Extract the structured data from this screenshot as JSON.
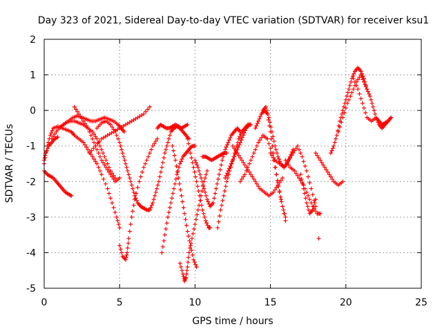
{
  "chart_data": {
    "type": "scatter",
    "title": "Day 323 of 2021, Sidereal Day-to-day VTEC variation (SDTVAR) for receiver ksu1",
    "xlabel": "GPS time / hours",
    "ylabel": "SDTVAR / TECUs",
    "xlim": [
      0,
      25
    ],
    "ylim": [
      -5,
      2
    ],
    "x_ticks": [
      "0",
      "5",
      "10",
      "15",
      "20",
      "25"
    ],
    "y_ticks": [
      "2",
      "1",
      "0",
      "-1",
      "-2",
      "-3",
      "-4",
      "-5"
    ],
    "grid": true,
    "marker": "plus",
    "series_color": "#ff0000",
    "series": [
      {
        "x": [
          0.0,
          0.2,
          0.4,
          0.6,
          0.9,
          1.2,
          1.5,
          1.8,
          2.0,
          2.3,
          2.6,
          2.9,
          3.2,
          3.5,
          3.8,
          4.2,
          4.5,
          4.8,
          5.0
        ],
        "y": [
          -1.5,
          -1.0,
          -0.7,
          -0.5,
          -0.45,
          -0.5,
          -0.55,
          -0.6,
          -0.7,
          -0.8,
          -0.9,
          -1.1,
          -1.3,
          -1.5,
          -1.8,
          -2.2,
          -2.6,
          -3.0,
          -3.3
        ]
      },
      {
        "x": [
          0.0,
          0.1,
          0.3,
          0.5,
          0.7,
          0.9
        ],
        "y": [
          -1.4,
          -1.2,
          -1.0,
          -0.9,
          -0.8,
          -0.75
        ]
      },
      {
        "x": [
          0.0,
          0.2,
          0.4,
          0.6,
          0.8,
          1.0,
          1.2,
          1.4,
          1.6,
          1.8
        ],
        "y": [
          -1.7,
          -1.8,
          -1.85,
          -1.9,
          -2.0,
          -2.1,
          -2.2,
          -2.3,
          -2.35,
          -2.4
        ]
      },
      {
        "x": [
          0.5,
          0.8,
          1.1,
          1.4,
          1.7,
          2.0,
          2.3,
          2.6,
          2.9,
          3.2,
          3.5,
          3.8,
          4.1,
          4.4,
          4.7
        ],
        "y": [
          -0.8,
          -0.6,
          -0.45,
          -0.35,
          -0.3,
          -0.3,
          -0.35,
          -0.4,
          -0.5,
          -0.6,
          -0.8,
          -1.1,
          -1.4,
          -1.7,
          -1.9
        ]
      },
      {
        "x": [
          1.0,
          1.3,
          1.6,
          1.9,
          2.2,
          2.5,
          2.8,
          3.1,
          3.4,
          3.7,
          4.0,
          4.3,
          4.6,
          4.9,
          5.1,
          5.3
        ],
        "y": [
          -0.5,
          -0.4,
          -0.3,
          -0.2,
          -0.15,
          -0.2,
          -0.25,
          -0.3,
          -0.3,
          -0.25,
          -0.2,
          -0.25,
          -0.3,
          -0.4,
          -0.5,
          -0.6
        ]
      },
      {
        "x": [
          2.0,
          2.3,
          2.6,
          2.9,
          3.2,
          3.5,
          3.8,
          4.1,
          4.4,
          4.7,
          5.0
        ],
        "y": [
          0.1,
          -0.1,
          -0.3,
          -0.5,
          -0.8,
          -1.1,
          -1.4,
          -1.6,
          -1.8,
          -2.0,
          -1.9
        ]
      },
      {
        "x": [
          3.0,
          3.4,
          3.8,
          4.2,
          4.6,
          5.0,
          5.4,
          5.8,
          6.2,
          6.6,
          7.0
        ],
        "y": [
          -1.2,
          -1.0,
          -0.8,
          -0.7,
          -0.6,
          -0.5,
          -0.4,
          -0.3,
          -0.2,
          -0.1,
          0.1
        ]
      },
      {
        "x": [
          3.5,
          3.8,
          4.1,
          4.4,
          4.7,
          5.0,
          5.2,
          5.4,
          5.6,
          5.8,
          6.0,
          6.2,
          6.4,
          6.6,
          6.8,
          7.0
        ],
        "y": [
          -0.5,
          -0.35,
          -0.3,
          -0.4,
          -0.6,
          -0.9,
          -1.2,
          -1.5,
          -1.8,
          -2.1,
          -2.4,
          -2.6,
          -2.7,
          -2.75,
          -2.8,
          -2.8
        ]
      },
      {
        "x": [
          5.0,
          5.2,
          5.4,
          5.5,
          5.6,
          5.8,
          6.0,
          6.3,
          6.6,
          6.9,
          7.2,
          7.5
        ],
        "y": [
          -3.8,
          -4.1,
          -4.2,
          -4.0,
          -3.6,
          -3.0,
          -2.5,
          -2.0,
          -1.6,
          -1.3,
          -1.0,
          -0.8
        ]
      },
      {
        "x": [
          7.0,
          7.2,
          7.4,
          7.6,
          7.8,
          8.0,
          8.2,
          8.4,
          8.6,
          8.8,
          9.0,
          9.2,
          9.4,
          9.6
        ],
        "y": [
          -2.8,
          -2.6,
          -2.3,
          -2.0,
          -1.6,
          -1.2,
          -0.9,
          -0.6,
          -0.5,
          -0.45,
          -0.5,
          -0.6,
          -0.7,
          -0.8
        ]
      },
      {
        "x": [
          7.5,
          7.7,
          7.9,
          8.1,
          8.3,
          8.5,
          8.7,
          8.9,
          9.1,
          9.3,
          9.5
        ],
        "y": [
          -0.5,
          -0.4,
          -0.45,
          -0.5,
          -0.5,
          -0.45,
          -0.4,
          -0.45,
          -0.5,
          -0.45,
          -0.4
        ]
      },
      {
        "x": [
          7.8,
          8.0,
          8.2,
          8.4,
          8.6,
          8.8,
          9.0,
          9.2,
          9.4,
          9.6,
          9.8,
          10.0
        ],
        "y": [
          -4.0,
          -3.5,
          -3.0,
          -2.6,
          -2.2,
          -1.8,
          -1.5,
          -1.3,
          -1.2,
          -1.1,
          -1.0,
          -1.0
        ]
      },
      {
        "x": [
          8.5,
          8.7,
          8.9,
          9.1,
          9.3,
          9.5,
          9.7,
          9.9,
          10.1
        ],
        "y": [
          -1.0,
          -1.4,
          -1.9,
          -2.4,
          -2.9,
          -3.4,
          -3.8,
          -4.2,
          -4.4
        ]
      },
      {
        "x": [
          9.0,
          9.2,
          9.3,
          9.4,
          9.5,
          9.6,
          9.8,
          10.0,
          10.2,
          10.4,
          10.6,
          10.8
        ],
        "y": [
          -4.3,
          -4.6,
          -4.8,
          -4.7,
          -4.4,
          -4.0,
          -3.6,
          -3.2,
          -2.8,
          -2.4,
          -2.0,
          -1.7
        ]
      },
      {
        "x": [
          9.5,
          9.7,
          9.9,
          10.1,
          10.3,
          10.5,
          10.7,
          10.9,
          11.0
        ],
        "y": [
          -0.8,
          -1.2,
          -1.6,
          -2.0,
          -2.4,
          -2.8,
          -3.1,
          -3.3,
          -3.3
        ]
      },
      {
        "x": [
          10.0,
          10.2,
          10.4,
          10.6,
          10.8,
          11.0,
          11.2,
          11.4,
          11.6,
          11.8,
          12.0,
          12.2,
          12.4,
          12.6,
          12.8,
          13.0
        ],
        "y": [
          -1.4,
          -1.6,
          -1.9,
          -2.2,
          -2.5,
          -2.7,
          -2.6,
          -2.2,
          -1.8,
          -1.4,
          -1.1,
          -0.9,
          -0.7,
          -0.6,
          -0.5,
          -0.6
        ]
      },
      {
        "x": [
          10.5,
          10.7,
          10.9,
          11.1,
          11.3,
          11.5,
          11.7,
          11.9,
          12.1
        ],
        "y": [
          -1.3,
          -1.3,
          -1.35,
          -1.4,
          -1.35,
          -1.3,
          -1.25,
          -1.2,
          -1.2
        ]
      },
      {
        "x": [
          11.5,
          11.7,
          11.9,
          12.1,
          12.3,
          12.5,
          12.7,
          12.9,
          13.1,
          13.3,
          13.5,
          13.7
        ],
        "y": [
          -3.3,
          -2.8,
          -2.4,
          -2.0,
          -1.7,
          -1.4,
          -1.1,
          -0.8,
          -0.6,
          -0.5,
          -0.4,
          -0.4
        ]
      },
      {
        "x": [
          12.0,
          12.2,
          12.4,
          12.6,
          12.8,
          13.0,
          13.2,
          13.4,
          13.6
        ],
        "y": [
          -1.9,
          -1.7,
          -1.5,
          -1.3,
          -1.1,
          -0.9,
          -0.7,
          -0.5,
          -0.4
        ]
      },
      {
        "x": [
          12.5,
          12.8,
          13.1,
          13.4,
          13.7,
          14.0,
          14.3,
          14.6,
          14.9,
          15.2,
          15.5,
          15.8
        ],
        "y": [
          -1.0,
          -1.2,
          -1.4,
          -1.6,
          -1.8,
          -2.0,
          -2.2,
          -2.3,
          -2.4,
          -2.3,
          -2.1,
          -1.9
        ]
      },
      {
        "x": [
          13.0,
          13.3,
          13.6,
          13.9,
          14.2,
          14.5,
          14.8,
          15.1,
          15.4,
          15.7,
          16.0
        ],
        "y": [
          -2.0,
          -1.8,
          -1.5,
          -1.2,
          -0.9,
          -0.7,
          -0.8,
          -1.2,
          -1.8,
          -2.5,
          -3.1
        ]
      },
      {
        "x": [
          14.0,
          14.2,
          14.4,
          14.6,
          14.8,
          15.0,
          15.2,
          15.4,
          15.6,
          15.8,
          16.0
        ],
        "y": [
          -0.5,
          -0.3,
          -0.1,
          0.0,
          -0.1,
          -0.6,
          -1.2,
          -1.8,
          -2.3,
          -2.7,
          -3.0
        ]
      },
      {
        "x": [
          14.5,
          14.7,
          14.9,
          15.1,
          15.3,
          15.5,
          15.7,
          15.9,
          16.1,
          16.3,
          16.5
        ],
        "y": [
          0.0,
          0.1,
          -0.2,
          -0.6,
          -1.0,
          -1.3,
          -1.5,
          -1.6,
          -1.5,
          -1.3,
          -1.1
        ]
      },
      {
        "x": [
          15.0,
          15.3,
          15.6,
          15.9,
          16.2,
          16.5,
          16.8,
          17.1,
          17.4,
          17.7,
          18.0
        ],
        "y": [
          -1.2,
          -1.4,
          -1.5,
          -1.6,
          -1.4,
          -1.2,
          -1.0,
          -1.3,
          -1.7,
          -2.2,
          -2.7
        ]
      },
      {
        "x": [
          16.0,
          16.3,
          16.6,
          16.9,
          17.2,
          17.5,
          17.8,
          18.1,
          18.3
        ],
        "y": [
          -1.4,
          -1.6,
          -1.7,
          -1.9,
          -2.1,
          -2.4,
          -2.7,
          -2.9,
          -2.9
        ]
      },
      {
        "x": [
          17.0,
          17.2,
          17.4,
          17.6,
          17.8,
          18.0
        ],
        "y": [
          -1.8,
          -2.2,
          -2.6,
          -2.9,
          -2.8,
          -2.5
        ]
      },
      {
        "x": [
          18.0,
          18.3,
          18.6,
          18.9,
          19.2,
          19.5,
          19.8
        ],
        "y": [
          -1.2,
          -1.4,
          -1.6,
          -1.8,
          -2.0,
          -2.1,
          -2.0
        ]
      },
      {
        "x": [
          18.2
        ],
        "y": [
          -3.6
        ]
      },
      {
        "x": [
          19.0,
          19.2,
          19.4,
          19.6,
          19.8,
          20.0,
          20.2,
          20.4,
          20.6,
          20.8,
          21.0,
          21.2,
          21.4
        ],
        "y": [
          -1.2,
          -1.0,
          -0.7,
          -0.3,
          0.0,
          0.3,
          0.6,
          0.9,
          1.1,
          1.2,
          1.1,
          0.9,
          0.6
        ]
      },
      {
        "x": [
          19.5,
          19.8,
          20.1,
          20.4,
          20.7,
          21.0,
          21.2,
          21.4,
          21.6,
          21.8,
          22.0,
          22.2,
          22.4,
          22.6,
          22.8,
          23.0
        ],
        "y": [
          -0.6,
          -0.2,
          0.2,
          0.5,
          0.8,
          1.0,
          0.8,
          0.6,
          0.4,
          0.1,
          -0.2,
          -0.4,
          -0.5,
          -0.4,
          -0.3,
          -0.2
        ]
      },
      {
        "x": [
          20.5,
          20.8,
          21.1,
          21.4,
          21.7,
          22.0,
          22.2,
          22.4,
          22.6,
          22.8,
          23.0
        ],
        "y": [
          0.9,
          0.6,
          0.2,
          -0.2,
          -0.3,
          -0.2,
          -0.3,
          -0.4,
          -0.35,
          -0.3,
          -0.2
        ]
      }
    ]
  }
}
